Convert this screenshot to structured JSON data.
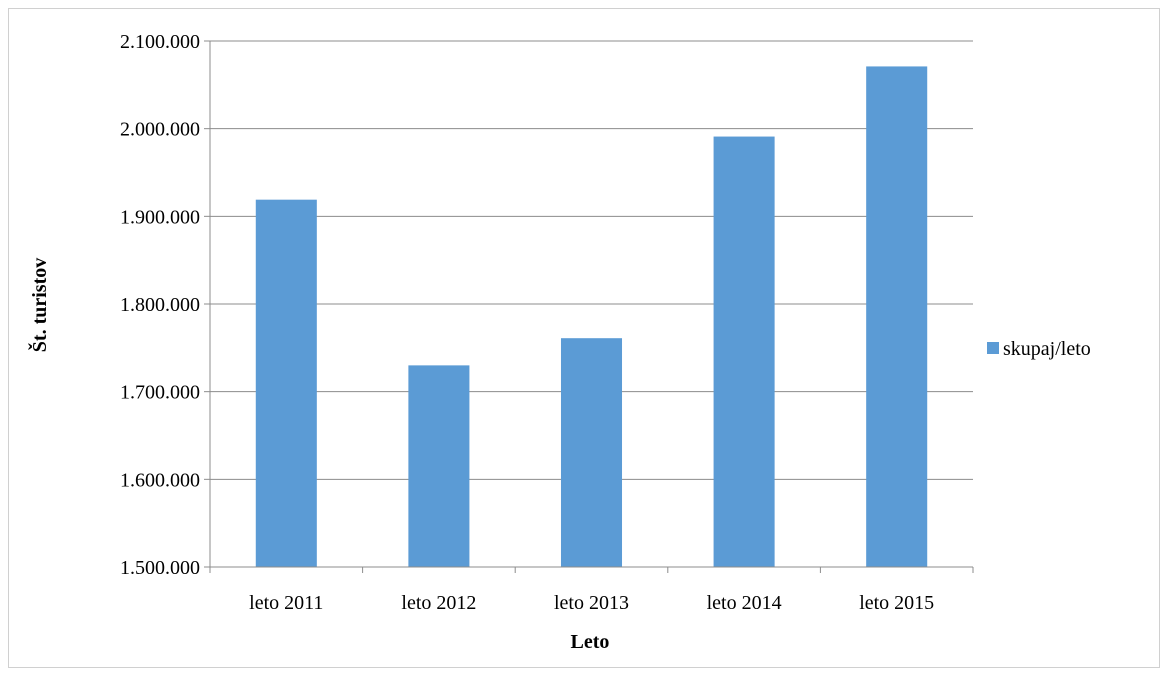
{
  "chart_data": {
    "type": "bar",
    "categories": [
      "leto 2011",
      "leto 2012",
      "leto 2013",
      "leto 2014",
      "leto 2015"
    ],
    "series": [
      {
        "name": "skupaj/leto",
        "values": [
          1919000,
          1730000,
          1761000,
          1991000,
          2071000
        ],
        "color": "#5b9bd5"
      }
    ],
    "title": "",
    "xlabel": "Leto",
    "ylabel": "Št. turistov",
    "ylim": [
      1500000,
      2100000
    ],
    "ytick_step": 100000,
    "ytick_labels": [
      "1.500.000",
      "1.600.000",
      "1.700.000",
      "1.800.000",
      "1.900.000",
      "2.000.000",
      "2.100.000"
    ],
    "grid": true,
    "legend_position": "right"
  }
}
